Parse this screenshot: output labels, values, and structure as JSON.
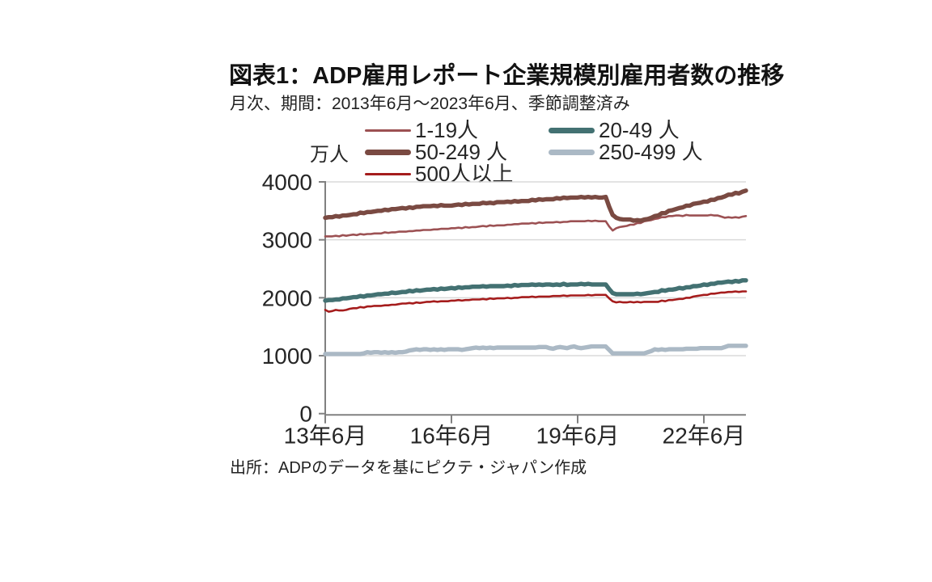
{
  "header": {
    "title": "図表1：ADP雇用レポート企業規模別雇用者数の推移",
    "subtitle": "月次、期間：2013年6月～2023年6月、季節調整済み"
  },
  "footer": {
    "source": "出所：ADPのデータを基にピクテ・ジャパン作成"
  },
  "chart_data": {
    "type": "line",
    "unit_label": "万人",
    "grid": true,
    "grid_color": "#DADADA",
    "axis_color": "#808080",
    "text_color": "#262626",
    "legend_position": "top",
    "x_axis": {
      "tick_labels": [
        "13年6月",
        "16年6月",
        "19年6月",
        "22年6月"
      ],
      "tick_years": [
        2013.5,
        2016.5,
        2019.5,
        2022.5
      ],
      "range_years": [
        2013.5,
        2023.5
      ]
    },
    "y_axis": {
      "tick_labels": [
        "0",
        "1000",
        "2000",
        "3000",
        "4000"
      ],
      "ticks": [
        0,
        1000,
        2000,
        3000,
        4000
      ],
      "range": [
        0,
        4000
      ]
    },
    "series": [
      {
        "name": "1-19人",
        "color": "#9C5153",
        "thickness": "thin",
        "points": [
          [
            2013.5,
            3055
          ],
          [
            2014.0,
            3075
          ],
          [
            2014.5,
            3100
          ],
          [
            2015.0,
            3125
          ],
          [
            2015.5,
            3150
          ],
          [
            2016.0,
            3175
          ],
          [
            2016.5,
            3195
          ],
          [
            2017.0,
            3220
          ],
          [
            2017.5,
            3245
          ],
          [
            2018.0,
            3268
          ],
          [
            2018.5,
            3288
          ],
          [
            2019.0,
            3305
          ],
          [
            2019.5,
            3318
          ],
          [
            2019.92,
            3325
          ],
          [
            2020.17,
            3320
          ],
          [
            2020.33,
            3150
          ],
          [
            2020.42,
            3205
          ],
          [
            2020.58,
            3230
          ],
          [
            2020.83,
            3262
          ],
          [
            2021.08,
            3315
          ],
          [
            2021.33,
            3360
          ],
          [
            2021.58,
            3398
          ],
          [
            2021.83,
            3418
          ],
          [
            2022.33,
            3422
          ],
          [
            2022.83,
            3420
          ],
          [
            2023.0,
            3385
          ],
          [
            2023.33,
            3385
          ],
          [
            2023.5,
            3415
          ]
        ]
      },
      {
        "name": "20-49 人",
        "color": "#437172",
        "thickness": "thick",
        "points": [
          [
            2013.5,
            1945
          ],
          [
            2014.0,
            1990
          ],
          [
            2014.5,
            2035
          ],
          [
            2015.0,
            2075
          ],
          [
            2015.5,
            2110
          ],
          [
            2016.0,
            2140
          ],
          [
            2016.5,
            2165
          ],
          [
            2017.0,
            2185
          ],
          [
            2017.5,
            2200
          ],
          [
            2018.0,
            2212
          ],
          [
            2018.5,
            2222
          ],
          [
            2019.0,
            2228
          ],
          [
            2019.6,
            2232
          ],
          [
            2020.17,
            2230
          ],
          [
            2020.33,
            2072
          ],
          [
            2020.5,
            2060
          ],
          [
            2021.0,
            2062
          ],
          [
            2021.25,
            2090
          ],
          [
            2021.5,
            2120
          ],
          [
            2022.0,
            2170
          ],
          [
            2022.5,
            2222
          ],
          [
            2023.0,
            2268
          ],
          [
            2023.5,
            2300
          ]
        ]
      },
      {
        "name": "50-249 人",
        "color": "#7A4A42",
        "thickness": "thick",
        "points": [
          [
            2013.5,
            3375
          ],
          [
            2014.0,
            3425
          ],
          [
            2014.5,
            3475
          ],
          [
            2015.0,
            3520
          ],
          [
            2015.5,
            3555
          ],
          [
            2016.0,
            3585
          ],
          [
            2016.3,
            3595
          ],
          [
            2016.45,
            3585
          ],
          [
            2016.6,
            3605
          ],
          [
            2017.0,
            3620
          ],
          [
            2017.5,
            3640
          ],
          [
            2018.0,
            3660
          ],
          [
            2018.4,
            3680
          ],
          [
            2019.0,
            3710
          ],
          [
            2019.33,
            3730
          ],
          [
            2019.83,
            3737
          ],
          [
            2020.17,
            3730
          ],
          [
            2020.33,
            3420
          ],
          [
            2020.5,
            3360
          ],
          [
            2020.75,
            3345
          ],
          [
            2020.92,
            3335
          ],
          [
            2021.08,
            3348
          ],
          [
            2021.25,
            3380
          ],
          [
            2021.5,
            3450
          ],
          [
            2021.75,
            3510
          ],
          [
            2022.0,
            3565
          ],
          [
            2022.25,
            3615
          ],
          [
            2022.5,
            3655
          ],
          [
            2022.75,
            3695
          ],
          [
            2023.0,
            3755
          ],
          [
            2023.17,
            3790
          ],
          [
            2023.33,
            3805
          ],
          [
            2023.5,
            3850
          ]
        ]
      },
      {
        "name": "250-499 人",
        "color": "#ABB9C5",
        "thickness": "thick",
        "points": [
          [
            2013.5,
            1030
          ],
          [
            2014.33,
            1030
          ],
          [
            2014.5,
            1055
          ],
          [
            2015.33,
            1055
          ],
          [
            2015.58,
            1105
          ],
          [
            2016.83,
            1108
          ],
          [
            2017.08,
            1135
          ],
          [
            2018.42,
            1140
          ],
          [
            2018.75,
            1150
          ],
          [
            2018.92,
            1118
          ],
          [
            2019.08,
            1155
          ],
          [
            2019.25,
            1128
          ],
          [
            2019.42,
            1160
          ],
          [
            2019.58,
            1132
          ],
          [
            2019.83,
            1160
          ],
          [
            2020.17,
            1160
          ],
          [
            2020.33,
            1042
          ],
          [
            2021.08,
            1042
          ],
          [
            2021.33,
            1105
          ],
          [
            2022.0,
            1112
          ],
          [
            2022.42,
            1128
          ],
          [
            2022.92,
            1128
          ],
          [
            2023.08,
            1168
          ],
          [
            2023.5,
            1170
          ]
        ]
      },
      {
        "name": "500人以上",
        "color": "#A51C1C",
        "thickness": "thin",
        "points": [
          [
            2013.5,
            1790
          ],
          [
            2013.58,
            1762
          ],
          [
            2013.75,
            1790
          ],
          [
            2013.92,
            1778
          ],
          [
            2014.08,
            1810
          ],
          [
            2014.5,
            1845
          ],
          [
            2015.0,
            1875
          ],
          [
            2015.5,
            1905
          ],
          [
            2016.0,
            1930
          ],
          [
            2016.5,
            1945
          ],
          [
            2017.0,
            1965
          ],
          [
            2017.5,
            1985
          ],
          [
            2018.0,
            2000
          ],
          [
            2018.5,
            2015
          ],
          [
            2019.0,
            2030
          ],
          [
            2019.5,
            2040
          ],
          [
            2020.17,
            2048
          ],
          [
            2020.33,
            1935
          ],
          [
            2020.58,
            1918
          ],
          [
            2020.83,
            1925
          ],
          [
            2021.33,
            1930
          ],
          [
            2021.58,
            1948
          ],
          [
            2021.83,
            1968
          ],
          [
            2022.08,
            1998
          ],
          [
            2022.33,
            2028
          ],
          [
            2022.58,
            2056
          ],
          [
            2022.83,
            2080
          ],
          [
            2023.08,
            2100
          ],
          [
            2023.5,
            2112
          ]
        ]
      }
    ]
  }
}
